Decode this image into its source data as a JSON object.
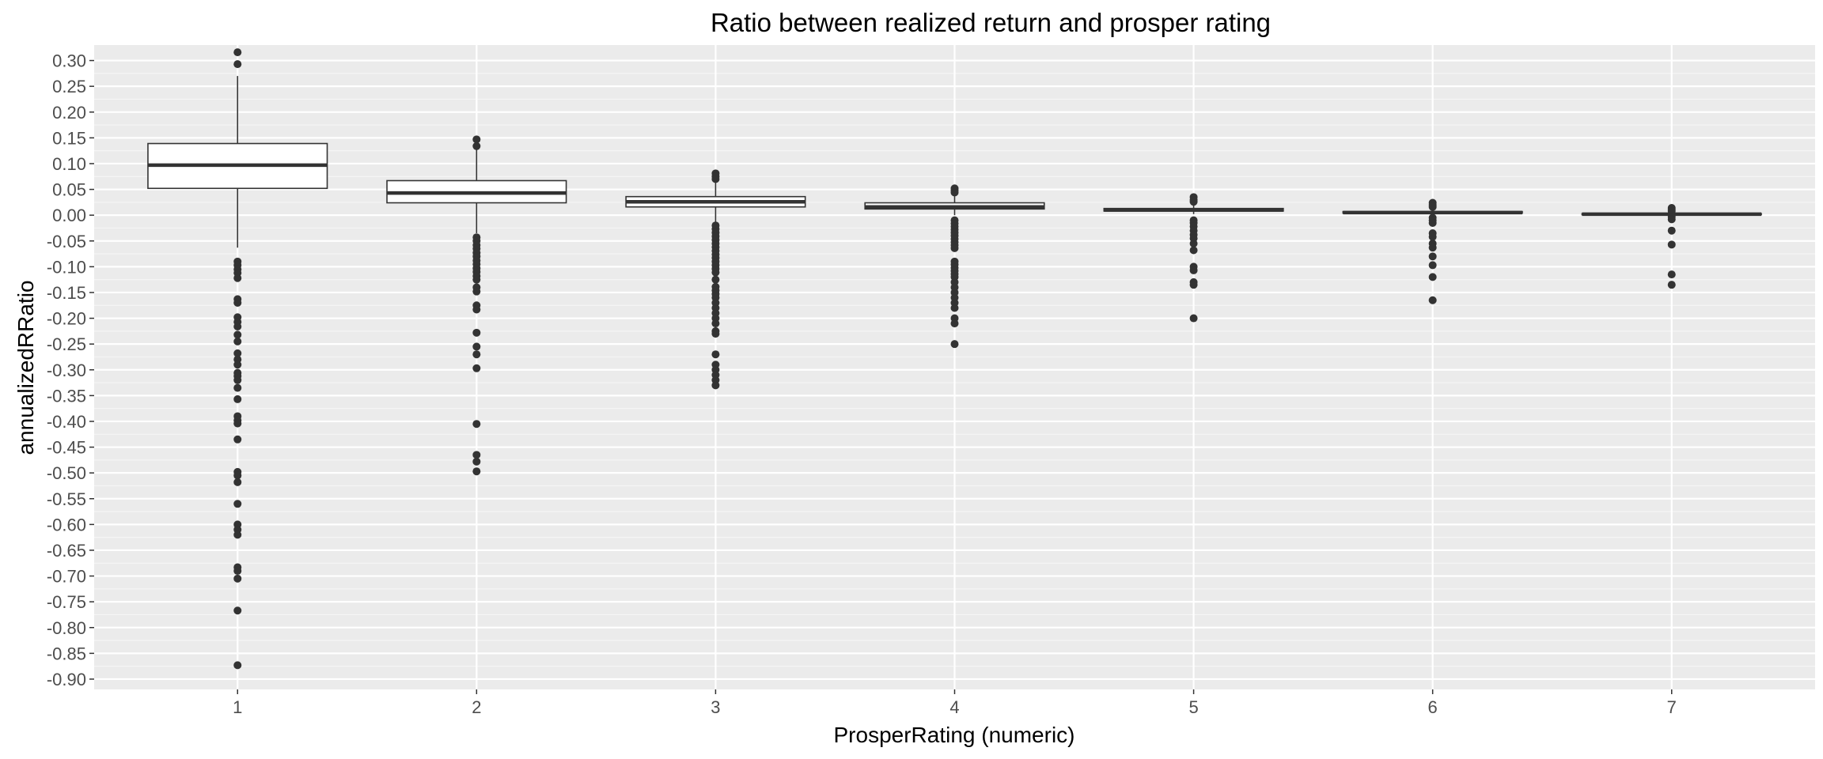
{
  "chart_data": {
    "type": "box",
    "title": "Ratio between realized return and prosper rating",
    "xlabel": "ProsperRating (numeric)",
    "ylabel": "annualizedRRatio",
    "categories": [
      "1",
      "2",
      "3",
      "4",
      "5",
      "6",
      "7"
    ],
    "ylim": [
      -0.92,
      0.33
    ],
    "y_ticks": [
      -0.9,
      -0.85,
      -0.8,
      -0.75,
      -0.7,
      -0.65,
      -0.6,
      -0.55,
      -0.5,
      -0.45,
      -0.4,
      -0.35,
      -0.3,
      -0.25,
      -0.2,
      -0.15,
      -0.1,
      -0.05,
      0.0,
      0.05,
      0.1,
      0.15,
      0.2,
      0.25,
      0.3
    ],
    "y_tick_labels": [
      "-0.90",
      "-0.85",
      "-0.80",
      "-0.75",
      "-0.70",
      "-0.65",
      "-0.60",
      "-0.55",
      "-0.50",
      "-0.45",
      "-0.40",
      "-0.35",
      "-0.30",
      "-0.25",
      "-0.20",
      "-0.15",
      "-0.10",
      "-0.05",
      "0.00",
      "0.05",
      "0.10",
      "0.15",
      "0.20",
      "0.25",
      "0.30"
    ],
    "grid": true,
    "legend": "none",
    "boxes": [
      {
        "category": "1",
        "q1": 0.052,
        "median": 0.097,
        "q3": 0.139,
        "whisker_low": -0.063,
        "whisker_high": 0.27,
        "outliers": [
          0.316,
          0.293,
          -0.09,
          -0.097,
          -0.105,
          -0.112,
          -0.122,
          -0.163,
          -0.17,
          -0.198,
          -0.207,
          -0.216,
          -0.232,
          -0.245,
          -0.268,
          -0.28,
          -0.29,
          -0.306,
          -0.312,
          -0.32,
          -0.335,
          -0.357,
          -0.39,
          -0.398,
          -0.404,
          -0.435,
          -0.498,
          -0.505,
          -0.518,
          -0.56,
          -0.6,
          -0.61,
          -0.62,
          -0.683,
          -0.69,
          -0.705,
          -0.767,
          -0.873
        ]
      },
      {
        "category": "2",
        "q1": 0.024,
        "median": 0.043,
        "q3": 0.067,
        "whisker_low": -0.035,
        "whisker_high": 0.128,
        "outliers": [
          0.147,
          0.134,
          -0.043,
          -0.05,
          -0.058,
          -0.065,
          -0.073,
          -0.08,
          -0.088,
          -0.095,
          -0.103,
          -0.11,
          -0.118,
          -0.125,
          -0.14,
          -0.148,
          -0.175,
          -0.183,
          -0.228,
          -0.255,
          -0.27,
          -0.297,
          -0.405,
          -0.465,
          -0.478,
          -0.497
        ]
      },
      {
        "category": "3",
        "q1": 0.016,
        "median": 0.026,
        "q3": 0.036,
        "whisker_low": -0.014,
        "whisker_high": 0.066,
        "outliers": [
          0.081,
          0.075,
          0.07,
          -0.02,
          -0.027,
          -0.034,
          -0.041,
          -0.048,
          -0.055,
          -0.062,
          -0.069,
          -0.076,
          -0.083,
          -0.09,
          -0.097,
          -0.104,
          -0.111,
          -0.125,
          -0.139,
          -0.146,
          -0.153,
          -0.16,
          -0.17,
          -0.18,
          -0.19,
          -0.2,
          -0.21,
          -0.225,
          -0.23,
          -0.27,
          -0.29,
          -0.3,
          -0.31,
          -0.32,
          -0.33
        ]
      },
      {
        "category": "4",
        "q1": 0.012,
        "median": 0.016,
        "q3": 0.024,
        "whisker_low": 0.0,
        "whisker_high": 0.04,
        "outliers": [
          0.052,
          0.048,
          0.044,
          -0.01,
          -0.016,
          -0.022,
          -0.028,
          -0.034,
          -0.04,
          -0.046,
          -0.052,
          -0.058,
          -0.064,
          -0.09,
          -0.096,
          -0.102,
          -0.108,
          -0.114,
          -0.12,
          -0.13,
          -0.14,
          -0.15,
          -0.16,
          -0.17,
          -0.18,
          -0.2,
          -0.21,
          -0.25
        ]
      },
      {
        "category": "5",
        "q1": 0.008,
        "median": 0.01,
        "q3": 0.013,
        "whisker_low": 0.002,
        "whisker_high": 0.02,
        "outliers": [
          0.035,
          0.03,
          0.026,
          -0.01,
          -0.015,
          -0.022,
          -0.03,
          -0.038,
          -0.045,
          -0.055,
          -0.068,
          -0.1,
          -0.107,
          -0.13,
          -0.135,
          -0.2
        ]
      },
      {
        "category": "6",
        "q1": 0.004,
        "median": 0.005,
        "q3": 0.007,
        "whisker_low": 0.001,
        "whisker_high": 0.012,
        "outliers": [
          0.024,
          0.02,
          0.016,
          -0.005,
          -0.01,
          -0.015,
          -0.035,
          -0.042,
          -0.055,
          -0.063,
          -0.08,
          -0.097,
          -0.12,
          -0.165
        ]
      },
      {
        "category": "7",
        "q1": 0.001,
        "median": 0.002,
        "q3": 0.003,
        "whisker_low": 0.0,
        "whisker_high": 0.006,
        "outliers": [
          0.014,
          0.011,
          0.008,
          -0.003,
          -0.008,
          -0.03,
          -0.057,
          -0.115,
          -0.135
        ]
      }
    ]
  }
}
